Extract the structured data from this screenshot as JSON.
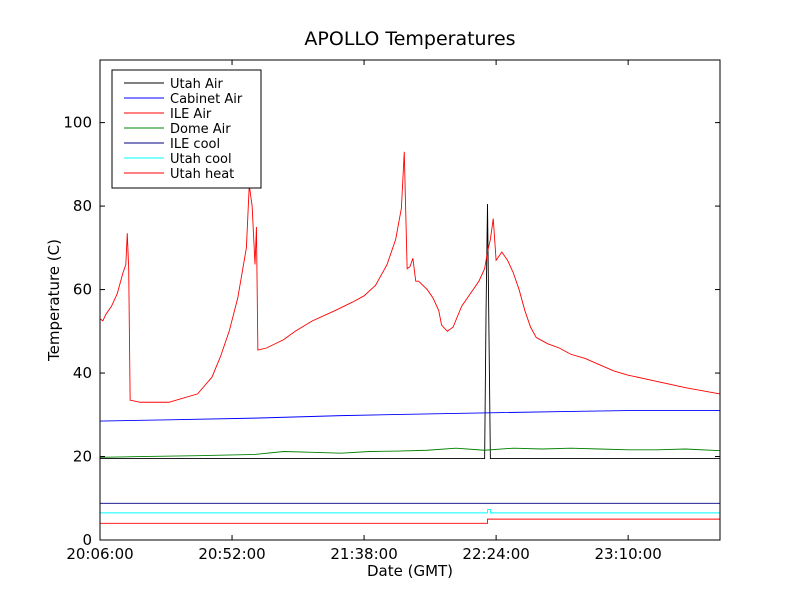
{
  "chart_data": {
    "type": "line",
    "title": "APOLLO Temperatures",
    "xlabel": "Date (GMT)",
    "ylabel": "Temperature (C)",
    "x_unit": "time of day (GMT)",
    "xlim": [
      "20:06:00",
      "23:42:00"
    ],
    "ylim": [
      0,
      115
    ],
    "x_ticks": [
      "20:06:00",
      "20:52:00",
      "21:38:00",
      "22:24:00",
      "23:10:00"
    ],
    "y_ticks": [
      0,
      20,
      40,
      60,
      80,
      100
    ],
    "legend_position": "top-left",
    "grid": false,
    "series": [
      {
        "name": "Utah Air",
        "color": "#000000",
        "points": [
          [
            "20:06:00",
            19.5
          ],
          [
            "22:20:00",
            19.5
          ],
          [
            "22:20:30",
            55
          ],
          [
            "22:21:00",
            80.5
          ],
          [
            "22:21:30",
            50
          ],
          [
            "22:22:00",
            19.5
          ],
          [
            "23:42:00",
            19.5
          ]
        ]
      },
      {
        "name": "Cabinet Air",
        "color": "#0000ff",
        "points": [
          [
            "20:06:00",
            28.5
          ],
          [
            "20:30:00",
            28.8
          ],
          [
            "21:00:00",
            29.2
          ],
          [
            "21:30:00",
            29.8
          ],
          [
            "22:00:00",
            30.2
          ],
          [
            "22:24:00",
            30.5
          ],
          [
            "22:50:00",
            30.8
          ],
          [
            "23:10:00",
            31.0
          ],
          [
            "23:42:00",
            31.0
          ]
        ]
      },
      {
        "name": "ILE Air",
        "color": "#ff0000",
        "points": [
          [
            "20:06:00",
            53
          ],
          [
            "20:07:00",
            52.5
          ],
          [
            "20:08:00",
            54
          ],
          [
            "20:10:00",
            56
          ],
          [
            "20:12:00",
            59
          ],
          [
            "20:14:00",
            64
          ],
          [
            "20:15:00",
            66
          ],
          [
            "20:15:30",
            73.5
          ],
          [
            "20:16:00",
            65
          ],
          [
            "20:16:30",
            33.5
          ],
          [
            "20:20:00",
            33
          ],
          [
            "20:30:00",
            33
          ],
          [
            "20:40:00",
            35
          ],
          [
            "20:45:00",
            39
          ],
          [
            "20:48:00",
            44
          ],
          [
            "20:51:00",
            50
          ],
          [
            "20:54:00",
            58
          ],
          [
            "20:57:00",
            70
          ],
          [
            "20:58:00",
            85
          ],
          [
            "20:59:00",
            80
          ],
          [
            "21:00:00",
            66
          ],
          [
            "21:00:30",
            75
          ],
          [
            "21:01:00",
            45.5
          ],
          [
            "21:04:00",
            46
          ],
          [
            "21:10:00",
            48
          ],
          [
            "21:14:00",
            50
          ],
          [
            "21:20:00",
            52.5
          ],
          [
            "21:28:00",
            55
          ],
          [
            "21:34:00",
            57
          ],
          [
            "21:38:00",
            58.5
          ],
          [
            "21:42:00",
            61
          ],
          [
            "21:46:00",
            66
          ],
          [
            "21:49:00",
            72
          ],
          [
            "21:51:00",
            79.5
          ],
          [
            "21:52:00",
            93
          ],
          [
            "21:53:00",
            65
          ],
          [
            "21:54:00",
            65.5
          ],
          [
            "21:55:00",
            67.5
          ],
          [
            "21:56:00",
            62
          ],
          [
            "21:57:00",
            62
          ],
          [
            "22:00:00",
            60
          ],
          [
            "22:02:00",
            58
          ],
          [
            "22:04:00",
            55
          ],
          [
            "22:05:00",
            51.5
          ],
          [
            "22:07:00",
            50
          ],
          [
            "22:09:00",
            51
          ],
          [
            "22:12:00",
            56
          ],
          [
            "22:15:00",
            59
          ],
          [
            "22:18:00",
            62
          ],
          [
            "22:20:00",
            65
          ],
          [
            "22:21:00",
            69
          ],
          [
            "22:22:00",
            72
          ],
          [
            "22:23:00",
            77
          ],
          [
            "22:24:00",
            67
          ],
          [
            "22:26:00",
            69
          ],
          [
            "22:28:00",
            67
          ],
          [
            "22:30:00",
            64
          ],
          [
            "22:32:00",
            60
          ],
          [
            "22:34:00",
            55
          ],
          [
            "22:36:00",
            51
          ],
          [
            "22:38:00",
            48.5
          ],
          [
            "22:42:00",
            47
          ],
          [
            "22:46:00",
            46
          ],
          [
            "22:50:00",
            44.5
          ],
          [
            "22:55:00",
            43.5
          ],
          [
            "23:00:00",
            42
          ],
          [
            "23:05:00",
            40.5
          ],
          [
            "23:10:00",
            39.5
          ],
          [
            "23:20:00",
            38
          ],
          [
            "23:30:00",
            36.5
          ],
          [
            "23:42:00",
            35
          ]
        ]
      },
      {
        "name": "Dome Air",
        "color": "#008000",
        "points": [
          [
            "20:06:00",
            19.8
          ],
          [
            "20:20:00",
            20
          ],
          [
            "20:40:00",
            20.2
          ],
          [
            "21:00:00",
            20.5
          ],
          [
            "21:10:00",
            21.2
          ],
          [
            "21:20:00",
            21
          ],
          [
            "21:30:00",
            20.8
          ],
          [
            "21:40:00",
            21.2
          ],
          [
            "21:50:00",
            21.3
          ],
          [
            "22:00:00",
            21.5
          ],
          [
            "22:10:00",
            22
          ],
          [
            "22:20:00",
            21.5
          ],
          [
            "22:30:00",
            22
          ],
          [
            "22:40:00",
            21.8
          ],
          [
            "22:50:00",
            22
          ],
          [
            "23:00:00",
            21.8
          ],
          [
            "23:10:00",
            21.6
          ],
          [
            "23:20:00",
            21.6
          ],
          [
            "23:30:00",
            21.8
          ],
          [
            "23:42:00",
            21.4
          ]
        ]
      },
      {
        "name": "ILE cool",
        "color": "#000080",
        "points": [
          [
            "20:06:00",
            8.8
          ],
          [
            "23:42:00",
            8.8
          ]
        ]
      },
      {
        "name": "Utah cool",
        "color": "#00ffff",
        "points": [
          [
            "20:06:00",
            6.5
          ],
          [
            "22:21:00",
            6.5
          ],
          [
            "22:21:00",
            7.3
          ],
          [
            "22:22:00",
            7.3
          ],
          [
            "22:22:00",
            6.5
          ],
          [
            "23:42:00",
            6.5
          ]
        ]
      },
      {
        "name": "Utah heat",
        "color": "#ff0000",
        "points": [
          [
            "20:06:00",
            4
          ],
          [
            "22:21:00",
            4
          ],
          [
            "22:21:00",
            5
          ],
          [
            "23:42:00",
            5
          ]
        ]
      }
    ]
  }
}
